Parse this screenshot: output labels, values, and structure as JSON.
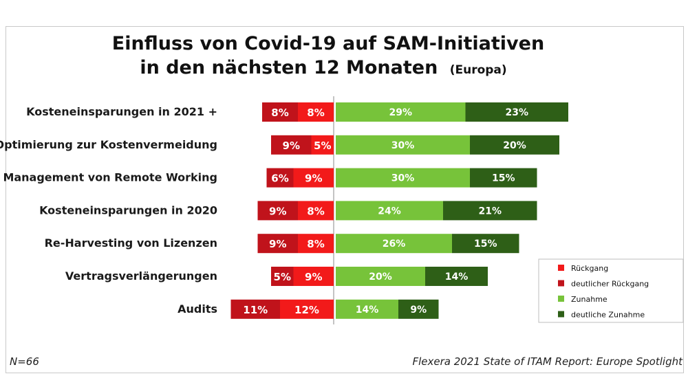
{
  "chart_data": {
    "type": "bar",
    "orientation": "horizontal-diverging-stacked",
    "title_line1": "Einfluss von Covid-19 auf SAM-Initiativen",
    "title_line2": "in den nächsten 12 Monaten",
    "title_suffix": "(Europa)",
    "categories": [
      "Kosteneinsparungen in 2021 +",
      "Optimierung zur Kostenvermeidung",
      "Management von Remote Working",
      "Kosteneinsparungen in 2020",
      "Re-Harvesting von Lizenzen",
      "Vertragsverlängerungen",
      "Audits"
    ],
    "series": [
      {
        "name": "deutlicher Rückgang",
        "color": "#c0131b",
        "side": "negative",
        "values": [
          8,
          9,
          6,
          9,
          9,
          5,
          11
        ]
      },
      {
        "name": "Rückgang",
        "color": "#f21a1a",
        "side": "negative",
        "values": [
          8,
          5,
          9,
          8,
          8,
          9,
          12
        ]
      },
      {
        "name": "Zunahme",
        "color": "#77c33a",
        "side": "positive",
        "values": [
          29,
          30,
          30,
          24,
          26,
          20,
          14
        ]
      },
      {
        "name": "deutliche Zunahme",
        "color": "#2e5f17",
        "side": "positive",
        "values": [
          23,
          20,
          15,
          21,
          15,
          14,
          9
        ]
      }
    ],
    "value_suffix": "%",
    "legend": {
      "placement": "bottom-right",
      "order": [
        "Rückgang",
        "deutlicher Rückgang",
        "Zunahme",
        "deutliche Zunahme"
      ]
    },
    "grid": false
  },
  "footer": {
    "sample_size": "N=66",
    "source": "Flexera 2021 State of ITAM Report: Europe Spotlight"
  }
}
